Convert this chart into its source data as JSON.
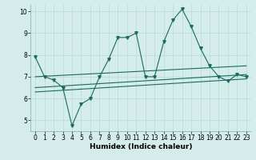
{
  "xlabel": "Humidex (Indice chaleur)",
  "background_color": "#d4ecea",
  "grid_color": "#b8d8d5",
  "line_color": "#1a6b60",
  "xlim": [
    -0.5,
    23.5
  ],
  "ylim": [
    4.5,
    10.3
  ],
  "yticks": [
    5,
    6,
    7,
    8,
    9,
    10
  ],
  "xticks": [
    0,
    1,
    2,
    3,
    4,
    5,
    6,
    7,
    8,
    9,
    10,
    11,
    12,
    13,
    14,
    15,
    16,
    17,
    18,
    19,
    20,
    21,
    22,
    23
  ],
  "series": [
    {
      "x": [
        0,
        1,
        2,
        3,
        4,
        5,
        6,
        7,
        8,
        9,
        10,
        11,
        12,
        13,
        14,
        15,
        16,
        17,
        18,
        19,
        20,
        21,
        22,
        23
      ],
      "y": [
        7.9,
        7.0,
        6.85,
        6.5,
        4.75,
        5.75,
        6.0,
        7.0,
        7.8,
        8.8,
        8.8,
        9.0,
        7.0,
        7.0,
        8.6,
        9.6,
        10.1,
        9.3,
        8.3,
        7.5,
        7.0,
        6.8,
        7.1,
        7.0
      ],
      "marker": "v",
      "markersize": 2.5
    },
    {
      "x": [
        0,
        23
      ],
      "y": [
        6.5,
        7.1
      ],
      "marker": "None"
    },
    {
      "x": [
        0,
        23
      ],
      "y": [
        6.3,
        6.9
      ],
      "marker": "None"
    },
    {
      "x": [
        0,
        23
      ],
      "y": [
        7.0,
        7.5
      ],
      "marker": "None"
    }
  ]
}
